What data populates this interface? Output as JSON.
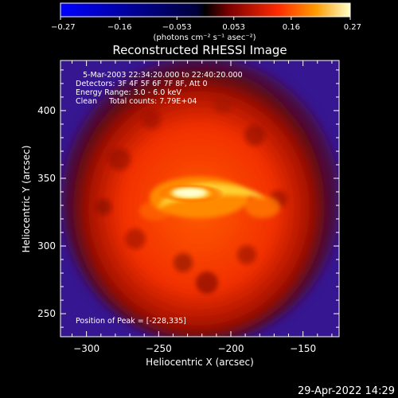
{
  "chart_data": {
    "type": "heatmap",
    "title": "Reconstructed RHESSI Image",
    "xlabel": "Heliocentric X (arcsec)",
    "ylabel": "Heliocentric Y (arcsec)",
    "xlim": [
      -318,
      -125
    ],
    "ylim": [
      233,
      437
    ],
    "x_ticks": [
      -300,
      -250,
      -200,
      -150
    ],
    "y_ticks": [
      250,
      300,
      350,
      400
    ],
    "colorbar": {
      "min": -0.27,
      "max": 0.27,
      "ticks": [
        "-0.27",
        "-0.16",
        "-0.053",
        "0.053",
        "0.16",
        "0.27"
      ],
      "unit_label": "(photons cm⁻² s⁻¹ asec⁻²)"
    },
    "peak": {
      "x": -228,
      "y": 335
    },
    "annotations": [
      "5-Mar-2003 22:34:20.000 to 22:40:20.000",
      "Detectors: 3F 4F 5F 6F 7F 8F, Att 0",
      "Energy Range: 3.0 - 6.0 keV",
      "Clean     Total counts: 7.79E+04"
    ],
    "peak_label": "Position of Peak = [-228,335]",
    "grid": false
  },
  "footer": {
    "timestamp": "29-Apr-2022 14:29"
  }
}
